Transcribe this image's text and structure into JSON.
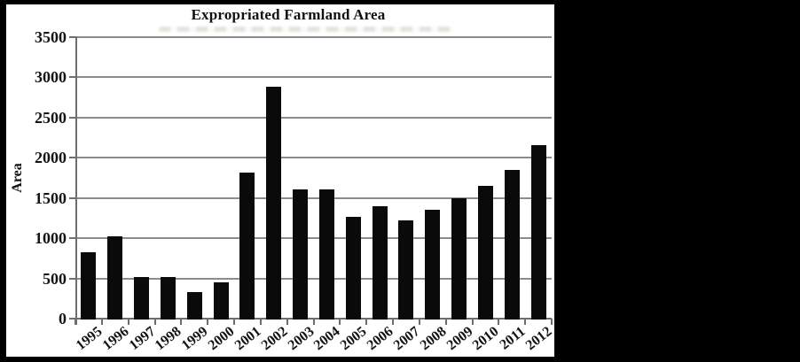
{
  "page": {
    "surround_color": "#000000",
    "canvas_color": "#ffffff"
  },
  "chart_data": {
    "type": "bar",
    "title": "Expropriated Farmland Area",
    "xlabel": "",
    "ylabel": "Area",
    "categories": [
      "1995",
      "1996",
      "1997",
      "1998",
      "1999",
      "2000",
      "2001",
      "2002",
      "2003",
      "2004",
      "2005",
      "2006",
      "2007",
      "2008",
      "2009",
      "2010",
      "2011",
      "2012"
    ],
    "values": [
      820,
      1020,
      520,
      520,
      330,
      450,
      1820,
      2880,
      1610,
      1610,
      1270,
      1400,
      1220,
      1350,
      1500,
      1650,
      1850,
      2160
    ],
    "ylim": [
      0,
      3500
    ],
    "yticks": [
      0,
      500,
      1000,
      1500,
      2000,
      2500,
      3000,
      3500
    ],
    "grid": true,
    "legend": false,
    "bar_color": "#0a0a0a",
    "gridline_color": "#8c8c8c",
    "axis_color": "#6e6e6e",
    "text_color": "#141414"
  }
}
